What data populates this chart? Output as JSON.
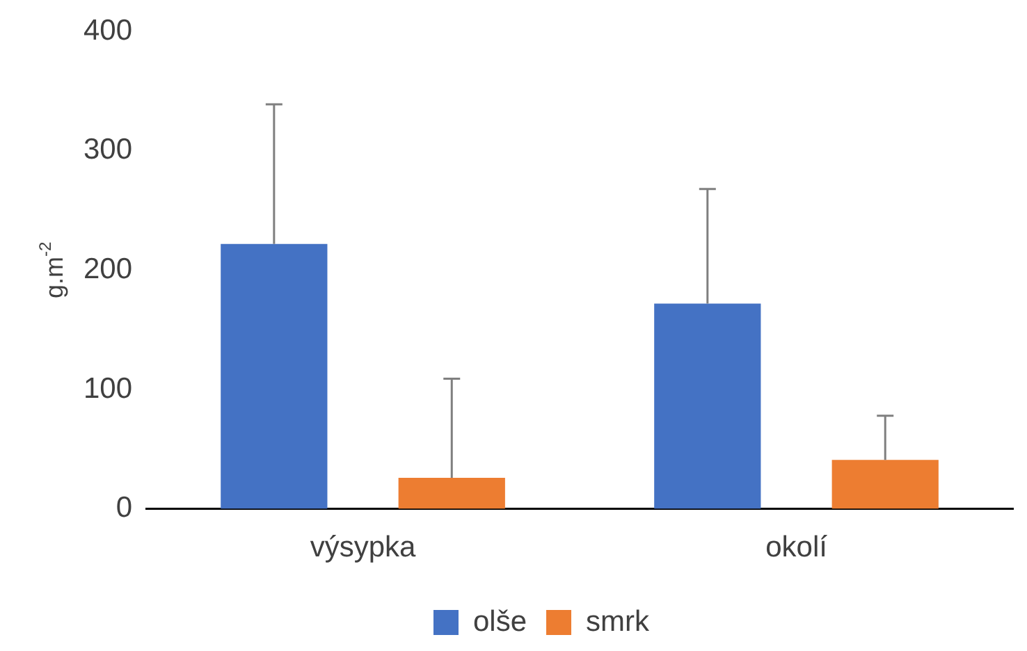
{
  "chart_data": {
    "type": "bar",
    "ylabel": "g.m$^{-2}$",
    "categories": [
      "výsypka",
      "okolí"
    ],
    "series": [
      {
        "name": "olše",
        "color": "#4472c4",
        "values": [
          222,
          172
        ],
        "errors": [
          [
            222,
            339
          ],
          [
            172,
            268
          ]
        ]
      },
      {
        "name": "smrk",
        "color": "#ed7d31",
        "values": [
          26,
          41
        ],
        "errors": [
          [
            26,
            109
          ],
          [
            41,
            78
          ]
        ]
      }
    ],
    "ylim": [
      0,
      400
    ],
    "yticks": [
      0,
      100,
      200,
      300,
      400
    ],
    "grid": false,
    "legend": "bottom"
  }
}
